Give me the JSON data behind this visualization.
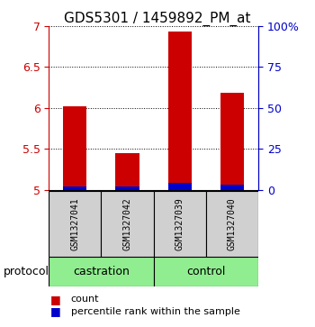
{
  "title": "GDS5301 / 1459892_PM_at",
  "samples": [
    "GSM1327041",
    "GSM1327042",
    "GSM1327039",
    "GSM1327040"
  ],
  "groups": [
    "castration",
    "castration",
    "control",
    "control"
  ],
  "red_values": [
    6.02,
    5.45,
    6.93,
    6.18
  ],
  "blue_values": [
    5.04,
    5.04,
    5.08,
    5.06
  ],
  "ylim": [
    5.0,
    7.0
  ],
  "yticks_left": [
    5.0,
    5.5,
    6.0,
    6.5,
    7.0
  ],
  "yticks_right": [
    0,
    25,
    50,
    75,
    100
  ],
  "left_color": "#CC0000",
  "right_color": "#0000CC",
  "blue_bar_color": "#0000CC",
  "red_bar_color": "#CC0000",
  "bar_base": 5.0,
  "bar_width": 0.45,
  "background_color": "#ffffff",
  "castration_label": "castration",
  "control_label": "control",
  "protocol_label": "protocol",
  "legend_count": "count",
  "legend_percentile": "percentile rank within the sample",
  "gray_box_color": "#D0D0D0",
  "green_color": "#90EE90",
  "green_edge_color": "#50C850"
}
